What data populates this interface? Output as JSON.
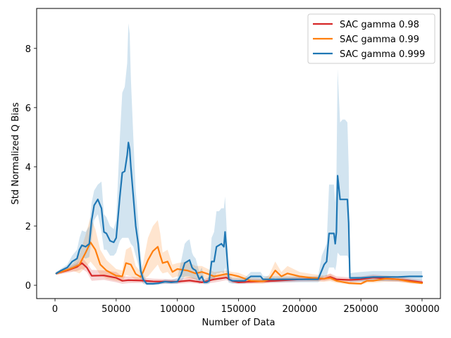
{
  "chart_data": {
    "type": "line",
    "xlabel": "Number of Data",
    "ylabel": "Std Normalized Q Bias",
    "xlim": [
      -15000,
      315000
    ],
    "ylim": [
      -0.45,
      9.35
    ],
    "xticks": [
      0,
      50000,
      100000,
      150000,
      200000,
      250000,
      300000
    ],
    "yticks": [
      0,
      2,
      4,
      6,
      8
    ],
    "grid": false,
    "legend": "top-right",
    "series": [
      {
        "name": "SAC gamma 0.98",
        "color": "#d62728",
        "x": [
          1000,
          10000,
          18000,
          22000,
          26000,
          30000,
          40000,
          50000,
          55000,
          60000,
          70000,
          80000,
          100000,
          110000,
          120000,
          130000,
          140000,
          145000,
          150000,
          160000,
          180000,
          200000,
          220000,
          225000,
          230000,
          240000,
          250000,
          260000,
          270000,
          280000,
          300000
        ],
        "y": [
          0.4,
          0.5,
          0.62,
          0.75,
          0.6,
          0.32,
          0.33,
          0.25,
          0.15,
          0.17,
          0.16,
          0.13,
          0.12,
          0.16,
          0.1,
          0.2,
          0.26,
          0.14,
          0.1,
          0.12,
          0.15,
          0.2,
          0.22,
          0.28,
          0.2,
          0.18,
          0.2,
          0.26,
          0.23,
          0.2,
          0.1
        ],
        "upper": [
          0.45,
          0.58,
          0.75,
          0.95,
          0.75,
          0.52,
          0.5,
          0.45,
          0.3,
          0.3,
          0.26,
          0.22,
          0.2,
          0.28,
          0.18,
          0.33,
          0.35,
          0.22,
          0.17,
          0.2,
          0.22,
          0.28,
          0.3,
          0.4,
          0.3,
          0.27,
          0.3,
          0.36,
          0.32,
          0.3,
          0.17
        ],
        "lower": [
          0.35,
          0.42,
          0.48,
          0.55,
          0.45,
          0.15,
          0.18,
          0.1,
          0.05,
          0.07,
          0.08,
          0.06,
          0.05,
          0.08,
          0.04,
          0.09,
          0.17,
          0.07,
          0.04,
          0.05,
          0.08,
          0.12,
          0.14,
          0.18,
          0.12,
          0.1,
          0.12,
          0.16,
          0.14,
          0.12,
          0.05
        ]
      },
      {
        "name": "SAC gamma 0.99",
        "color": "#ff7f0e",
        "x": [
          1000,
          10000,
          15000,
          20000,
          25000,
          29000,
          33000,
          37000,
          42000,
          50000,
          55000,
          58000,
          62000,
          66000,
          70000,
          72000,
          76000,
          80000,
          84000,
          86000,
          88000,
          92000,
          96000,
          100000,
          108000,
          115000,
          120000,
          125000,
          130000,
          140000,
          145000,
          150000,
          160000,
          170000,
          175000,
          180000,
          185000,
          190000,
          200000,
          210000,
          220000,
          225000,
          230000,
          240000,
          250000,
          255000,
          260000,
          270000,
          280000,
          290000,
          300000
        ],
        "y": [
          0.4,
          0.52,
          0.6,
          0.7,
          1.1,
          1.45,
          1.2,
          0.7,
          0.5,
          0.32,
          0.3,
          0.75,
          0.7,
          0.38,
          0.28,
          0.45,
          0.85,
          1.15,
          1.3,
          1.0,
          0.75,
          0.8,
          0.45,
          0.55,
          0.5,
          0.4,
          0.45,
          0.38,
          0.3,
          0.38,
          0.35,
          0.3,
          0.15,
          0.13,
          0.2,
          0.5,
          0.3,
          0.4,
          0.3,
          0.25,
          0.22,
          0.25,
          0.15,
          0.07,
          0.05,
          0.15,
          0.15,
          0.22,
          0.2,
          0.12,
          0.07
        ],
        "upper": [
          0.45,
          0.6,
          0.75,
          1.05,
          1.7,
          2.3,
          1.9,
          1.2,
          0.85,
          0.55,
          0.5,
          1.2,
          1.3,
          0.65,
          0.45,
          0.75,
          1.6,
          2.0,
          2.2,
          1.75,
          1.1,
          1.2,
          0.7,
          0.75,
          0.8,
          0.65,
          0.65,
          0.55,
          0.45,
          0.5,
          0.45,
          0.42,
          0.25,
          0.22,
          0.35,
          0.8,
          0.45,
          0.65,
          0.45,
          0.38,
          0.33,
          0.38,
          0.25,
          0.14,
          0.1,
          0.22,
          0.25,
          0.32,
          0.3,
          0.2,
          0.12
        ],
        "lower": [
          0.35,
          0.45,
          0.48,
          0.4,
          0.6,
          0.8,
          0.6,
          0.35,
          0.22,
          0.15,
          0.12,
          0.35,
          0.3,
          0.18,
          0.12,
          0.2,
          0.3,
          0.5,
          0.7,
          0.5,
          0.4,
          0.45,
          0.25,
          0.3,
          0.25,
          0.2,
          0.25,
          0.2,
          0.15,
          0.25,
          0.22,
          0.18,
          0.07,
          0.06,
          0.1,
          0.25,
          0.18,
          0.2,
          0.18,
          0.15,
          0.12,
          0.14,
          0.08,
          0.03,
          0.02,
          0.08,
          0.08,
          0.12,
          0.12,
          0.06,
          0.03
        ]
      },
      {
        "name": "SAC gamma 0.999",
        "color": "#1f77b4",
        "x": [
          1000,
          5000,
          10000,
          14000,
          18000,
          20000,
          22000,
          25000,
          28000,
          30000,
          32000,
          35000,
          38000,
          40000,
          42000,
          45000,
          48000,
          50000,
          53000,
          55000,
          57000,
          59000,
          60000,
          61000,
          62000,
          64000,
          66000,
          68000,
          70000,
          72000,
          75000,
          80000,
          85000,
          90000,
          95000,
          100000,
          103000,
          106000,
          108000,
          110000,
          112000,
          113000,
          115000,
          118000,
          120000,
          122000,
          124000,
          126000,
          128000,
          130000,
          132000,
          134000,
          136000,
          138000,
          139000,
          140000,
          142000,
          145000,
          150000,
          155000,
          160000,
          165000,
          168000,
          170000,
          175000,
          180000,
          190000,
          200000,
          210000,
          215000,
          218000,
          220000,
          222000,
          224000,
          226000,
          228000,
          229000,
          230000,
          231000,
          233000,
          235000,
          237000,
          239000,
          240000,
          241000,
          243000,
          250000,
          260000,
          270000,
          280000,
          290000,
          300000
        ],
        "y": [
          0.4,
          0.5,
          0.6,
          0.8,
          0.9,
          1.2,
          1.35,
          1.3,
          1.4,
          2.2,
          2.7,
          2.9,
          2.6,
          1.8,
          1.75,
          1.5,
          1.45,
          1.6,
          3.0,
          3.8,
          3.85,
          4.4,
          4.82,
          4.6,
          4.0,
          3.0,
          2.0,
          1.4,
          0.5,
          0.2,
          0.05,
          0.05,
          0.07,
          0.12,
          0.1,
          0.12,
          0.35,
          0.75,
          0.8,
          0.85,
          0.6,
          0.55,
          0.5,
          0.2,
          0.3,
          0.1,
          0.1,
          0.15,
          0.8,
          0.8,
          1.3,
          1.35,
          1.4,
          1.3,
          1.8,
          1.3,
          0.2,
          0.15,
          0.15,
          0.15,
          0.3,
          0.3,
          0.3,
          0.2,
          0.2,
          0.2,
          0.2,
          0.2,
          0.2,
          0.2,
          0.5,
          0.7,
          0.8,
          1.75,
          1.75,
          1.75,
          1.4,
          1.8,
          3.7,
          2.9,
          2.9,
          2.9,
          2.9,
          2.1,
          0.25,
          0.25,
          0.25,
          0.28,
          0.28,
          0.28,
          0.3,
          0.3
        ],
        "upper": [
          0.45,
          0.56,
          0.7,
          1.0,
          1.2,
          1.6,
          1.85,
          1.8,
          2.0,
          2.8,
          3.2,
          3.4,
          3.5,
          2.4,
          2.3,
          2.0,
          1.9,
          2.2,
          5.0,
          6.5,
          6.7,
          7.5,
          8.85,
          8.5,
          7.0,
          5.0,
          3.2,
          2.2,
          1.0,
          0.4,
          0.12,
          0.1,
          0.12,
          0.2,
          0.18,
          0.25,
          0.8,
          1.4,
          1.5,
          1.55,
          1.1,
          1.0,
          0.9,
          0.45,
          0.6,
          0.2,
          0.2,
          0.3,
          1.6,
          1.8,
          2.5,
          2.5,
          2.6,
          2.6,
          3.0,
          2.2,
          0.35,
          0.25,
          0.25,
          0.25,
          0.45,
          0.45,
          0.45,
          0.32,
          0.3,
          0.3,
          0.3,
          0.3,
          0.3,
          0.3,
          1.0,
          1.2,
          1.4,
          3.4,
          3.4,
          3.4,
          2.8,
          3.6,
          7.3,
          5.5,
          5.6,
          5.6,
          5.5,
          4.0,
          0.4,
          0.42,
          0.45,
          0.48,
          0.48,
          0.48,
          0.48,
          0.48
        ],
        "lower": [
          0.35,
          0.44,
          0.5,
          0.6,
          0.65,
          0.85,
          0.95,
          0.9,
          0.95,
          1.6,
          2.2,
          2.4,
          1.8,
          1.2,
          1.2,
          1.0,
          1.0,
          1.1,
          1.5,
          1.6,
          1.6,
          1.6,
          1.6,
          1.5,
          1.4,
          1.3,
          1.0,
          0.7,
          0.2,
          0.05,
          0.01,
          0.01,
          0.02,
          0.05,
          0.04,
          0.05,
          0.1,
          0.3,
          0.3,
          0.3,
          0.25,
          0.22,
          0.2,
          0.05,
          0.1,
          0.03,
          0.03,
          0.05,
          0.2,
          0.2,
          0.4,
          0.4,
          0.45,
          0.4,
          0.6,
          0.4,
          0.08,
          0.06,
          0.06,
          0.06,
          0.15,
          0.15,
          0.15,
          0.1,
          0.1,
          0.1,
          0.1,
          0.1,
          0.1,
          0.1,
          0.2,
          0.3,
          0.3,
          0.6,
          0.6,
          0.6,
          0.5,
          0.7,
          1.1,
          1.0,
          1.0,
          1.0,
          1.0,
          0.9,
          0.12,
          0.12,
          0.12,
          0.14,
          0.14,
          0.14,
          0.15,
          0.15
        ]
      }
    ]
  }
}
